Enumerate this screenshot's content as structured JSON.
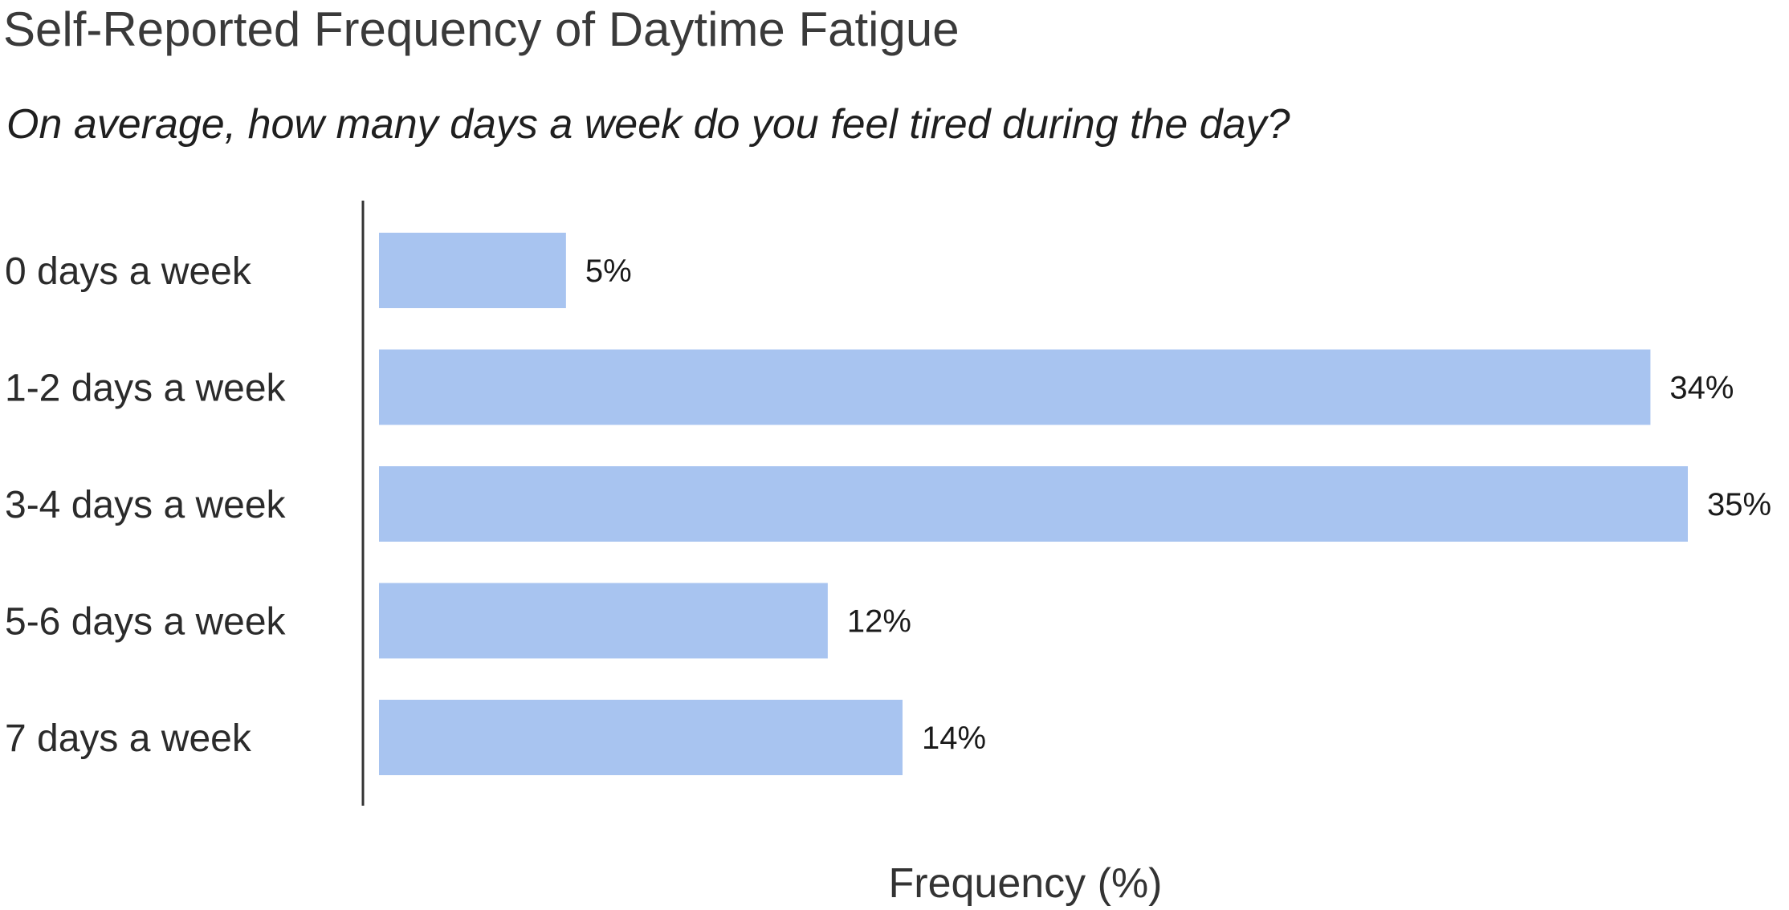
{
  "chart_data": {
    "type": "bar",
    "orientation": "horizontal",
    "title": "Self-Reported Frequency of Daytime Fatigue",
    "subtitle": "On average, how many days a week do you feel tired during the day?",
    "xlabel": "Frequency (%)",
    "ylabel": "",
    "categories": [
      "0 days a week",
      "1-2 days a week",
      "3-4 days a week",
      "5-6 days a week",
      "7 days a week"
    ],
    "values": [
      5,
      34,
      35,
      12,
      14
    ],
    "value_labels": [
      "5%",
      "34%",
      "35%",
      "12%",
      "14%"
    ],
    "xlim": [
      0,
      35
    ],
    "bar_color": "#a8c4f0",
    "axis_color": "#333333",
    "grid": false,
    "legend": "none"
  }
}
